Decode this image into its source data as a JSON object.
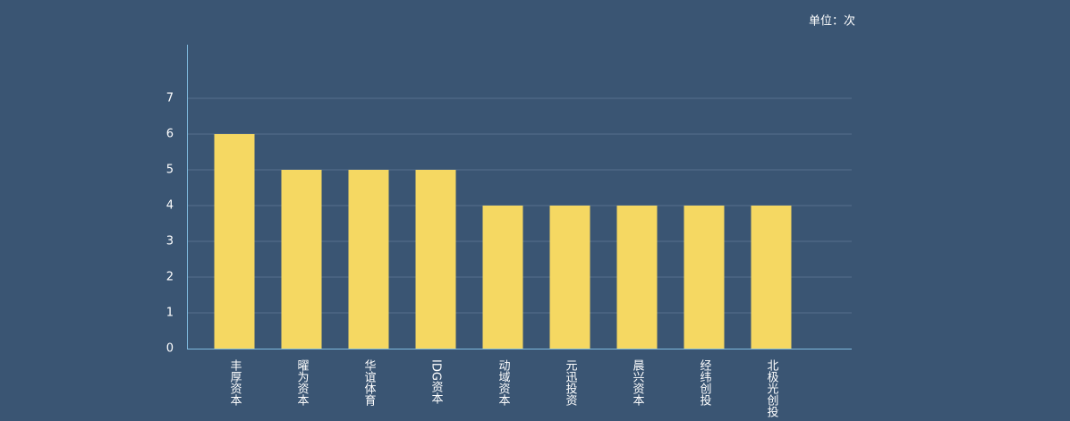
{
  "chart_data": {
    "type": "bar",
    "unit_label": "单位：次",
    "categories": [
      "丰厚资本",
      "曜为资本",
      "华谊体育",
      "IDG资本",
      "动域资本",
      "元迅投资",
      "晨兴资本",
      "经纬创投",
      "北极光创投"
    ],
    "values": [
      6,
      5,
      5,
      5,
      4,
      4,
      4,
      4,
      4
    ],
    "color": "#f5d862",
    "ylim": [
      0,
      8.5
    ],
    "yticks": [
      0,
      1,
      2,
      3,
      4,
      5,
      6,
      7
    ],
    "grid": true
  }
}
